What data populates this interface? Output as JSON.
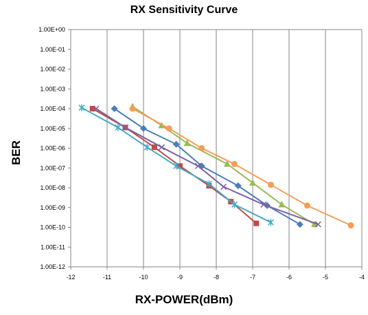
{
  "chart_data": {
    "type": "line",
    "title": "RX Sensitivity Curve",
    "xlabel": "RX-POWER(dBm)",
    "ylabel": "BER",
    "xlim": [
      -12,
      -4
    ],
    "ylim_log10": [
      -12,
      0
    ],
    "y_scale": "log",
    "grid": "vertical",
    "x_ticks": [
      "-12",
      "-11",
      "-10",
      "-9",
      "-8",
      "-7",
      "-6",
      "-5",
      "-4"
    ],
    "y_ticks": [
      "1.00E+00",
      "1.00E-01",
      "1.00E-02",
      "1.00E-03",
      "1.00E-04",
      "1.00E-05",
      "1.00E-06",
      "1.00E-07",
      "1.00E-08",
      "1.00E-09",
      "1.00E-10",
      "1.00E-11",
      "1.00E-12"
    ],
    "series": [
      {
        "color": "#4a7ebb",
        "marker": "diamond",
        "points": [
          [
            -10.8,
            -4.0
          ],
          [
            -10.0,
            -5.0
          ],
          [
            -9.1,
            -5.8
          ],
          [
            -8.4,
            -6.9
          ],
          [
            -7.4,
            -7.9
          ],
          [
            -6.6,
            -8.9
          ],
          [
            -5.7,
            -9.85
          ]
        ]
      },
      {
        "color": "#be4b48",
        "marker": "square",
        "points": [
          [
            -11.4,
            -4.0
          ],
          [
            -10.5,
            -4.95
          ],
          [
            -9.7,
            -5.95
          ],
          [
            -9.0,
            -6.9
          ],
          [
            -8.2,
            -7.9
          ],
          [
            -7.6,
            -8.7
          ],
          [
            -6.9,
            -9.8
          ]
        ]
      },
      {
        "color": "#98b954",
        "marker": "triangle",
        "points": [
          [
            -10.3,
            -3.9
          ],
          [
            -9.5,
            -4.85
          ],
          [
            -8.8,
            -5.75
          ],
          [
            -7.7,
            -6.8
          ],
          [
            -7.0,
            -7.75
          ],
          [
            -6.2,
            -8.85
          ],
          [
            -5.3,
            -9.85
          ]
        ]
      },
      {
        "color": "#7d60a0",
        "marker": "x",
        "points": [
          [
            -11.3,
            -4.0
          ],
          [
            -10.5,
            -4.95
          ],
          [
            -9.5,
            -5.95
          ],
          [
            -8.5,
            -6.9
          ],
          [
            -7.8,
            -7.95
          ],
          [
            -6.7,
            -8.85
          ],
          [
            -5.2,
            -9.85
          ]
        ]
      },
      {
        "color": "#46aac5",
        "marker": "star",
        "points": [
          [
            -11.7,
            -3.95
          ],
          [
            -10.7,
            -4.95
          ],
          [
            -9.9,
            -5.95
          ],
          [
            -9.1,
            -6.9
          ],
          [
            -8.2,
            -7.8
          ],
          [
            -7.5,
            -8.85
          ],
          [
            -6.5,
            -9.75
          ]
        ]
      },
      {
        "color": "#f59d56",
        "marker": "circle",
        "points": [
          [
            -10.3,
            -4.0
          ],
          [
            -9.3,
            -5.0
          ],
          [
            -8.4,
            -6.0
          ],
          [
            -7.5,
            -6.8
          ],
          [
            -6.5,
            -7.85
          ],
          [
            -5.5,
            -8.9
          ],
          [
            -4.3,
            -9.9
          ]
        ]
      }
    ]
  }
}
